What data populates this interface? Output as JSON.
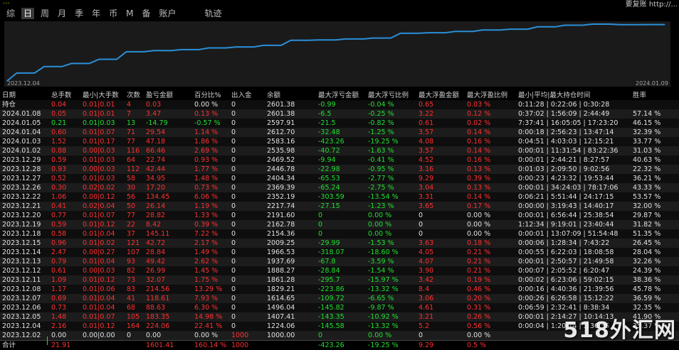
{
  "header": {
    "title": "...",
    "right": "要复账 http://..."
  },
  "tabs": [
    {
      "label": "综"
    },
    {
      "label": "日"
    },
    {
      "label": "周"
    },
    {
      "label": "月"
    },
    {
      "label": "季"
    },
    {
      "label": "年"
    },
    {
      "label": "币"
    },
    {
      "label": "M"
    },
    {
      "label": "备"
    },
    {
      "label": "账户"
    },
    {
      "label": "轨迹"
    }
  ],
  "chart_data": {
    "type": "line",
    "x": [
      "2023.12.04",
      "2023.12.05",
      "2023.12.06",
      "2023.12.07",
      "2023.12.08",
      "2023.12.11",
      "2023.12.12",
      "2023.12.13",
      "2023.12.14",
      "2023.12.15",
      "2023.12.18",
      "2023.12.19",
      "2023.12.20",
      "2023.12.21",
      "2023.12.22",
      "2023.12.26",
      "2023.12.27",
      "2023.12.28",
      "2023.12.29",
      "2024.01.02",
      "2024.01.03",
      "2024.01.04",
      "2024.01.05",
      "2024.01.08",
      "2024.01.09"
    ],
    "y": [
      1000,
      1224.06,
      1407.41,
      1496.04,
      1614.65,
      1829.21,
      1861.28,
      1888.27,
      1937.69,
      1966.53,
      2009.25,
      2154.36,
      2162.78,
      2191.6,
      2217.74,
      2352.19,
      2369.39,
      2404.34,
      2446.78,
      2469.52,
      2535.98,
      2583.16,
      2612.7,
      2597.91,
      2601.38
    ],
    "x_tick_labels": [
      "2023.12.04",
      "2024.01.09"
    ],
    "color": "#2a8fd8"
  },
  "table": {
    "headers": [
      "日期",
      "总手数",
      "最小|大手数",
      "次数",
      "盈亏金额",
      "百分比%",
      "出入金",
      "余额",
      "最大浮亏金额",
      "最大浮亏比例",
      "最大浮盈金额",
      "最大浮盈比例",
      "最小|平均|最大持仓时间",
      "胜率"
    ],
    "rows": [
      [
        "持仓",
        "0.04",
        "0.01|0.01",
        "4",
        "0.03",
        "0.00 %",
        "0",
        "2601.38",
        "-0.99",
        "-0.04 %",
        "0.65",
        "0.03 %",
        "0:11:28 | 0:22:06 | 0:30:28",
        ""
      ],
      [
        "2024.01.08",
        "0.05",
        "0.01|0.01",
        "7",
        "3.47",
        "0.13 %",
        "0",
        "2601.38",
        "-6.5",
        "-0.25 %",
        "3.22",
        "0.12 %",
        "0:37:02 | 1:56:09 | 2:44:49",
        "57.14 %"
      ],
      [
        "2024.01.05",
        "0.21",
        "0.01|0.03",
        "13",
        "-14.79",
        "-0.57 %",
        "0",
        "2597.91",
        "-21.5",
        "-0.82 %",
        "0.61",
        "0.02 %",
        "7:37:41 | 16:05:05 | 17:23:20",
        "46.15 %"
      ],
      [
        "2024.01.04",
        "0.60",
        "0.01|0.07",
        "71",
        "29.54",
        "1.14 %",
        "0",
        "2612.70",
        "-32.48",
        "-1.25 %",
        "3.57",
        "0.14 %",
        "0:00:18 | 2:56:23 | 13:47:14",
        "32.39 %"
      ],
      [
        "2024.01.03",
        "1.52",
        "0.01|0.17",
        "77",
        "47.18",
        "1.86 %",
        "0",
        "2583.16",
        "-423.26",
        "-19.25 %",
        "4.08",
        "0.16 %",
        "0:04:51 | 4:03:03 | 12:15:21",
        "33.77 %"
      ],
      [
        "2024.01.02",
        "0.88",
        "0.00|0.03",
        "116",
        "66.46",
        "2.69 %",
        "0",
        "2535.98",
        "-40.72",
        "-1.63 %",
        "3.57",
        "0.14 %",
        "0:00:01 | 11:31:54 | 83:22:36",
        "31.03 %"
      ],
      [
        "2023.12.29",
        "0.59",
        "0.01|0.03",
        "64",
        "22.74",
        "0.93 %",
        "0",
        "2469.52",
        "-9.94",
        "-0.41 %",
        "4.52",
        "0.16 %",
        "0:00:01 | 2:44:21 | 8:27:57",
        "40.63 %"
      ],
      [
        "2023.12.28",
        "0.93",
        "0.00|0.03",
        "112",
        "42.44",
        "1.77 %",
        "0",
        "2446.78",
        "-22.98",
        "-0.95 %",
        "3.16",
        "0.13 %",
        "0:01:03 | 2:09:50 | 9:02:56",
        "22.32 %"
      ],
      [
        "2023.12.27",
        "0.52",
        "0.01|0.03",
        "58",
        "34.95",
        "1.48 %",
        "0",
        "2404.34",
        "-65.53",
        "-2.77 %",
        "9.29",
        "0.39 %",
        "0:00:23 | 4:23:32 | 19:53:44",
        "36.21 %"
      ],
      [
        "2023.12.26",
        "0.30",
        "0.02|0.02",
        "30",
        "17.20",
        "0.73 %",
        "0",
        "2369.39",
        "-65.24",
        "-2.75 %",
        "3.04",
        "0.13 %",
        "0:00:01 | 34:24:03 | 78:17:06",
        "43.33 %"
      ],
      [
        "2023.12.22",
        "1.06",
        "0.00|0.12",
        "56",
        "134.45",
        "6.06 %",
        "0",
        "2352.19",
        "-303.59",
        "-13.54 %",
        "3.31",
        "0.14 %",
        "0:06:21 | 5:51:44 | 24:17:15",
        "53.57 %"
      ],
      [
        "2023.12.21",
        "0.41",
        "0.02|0.04",
        "50",
        "26.14",
        "1.19 %",
        "0",
        "2217.74",
        "-27.15",
        "-1.23 %",
        "3.65",
        "0.17 %",
        "0:00:00 | 3:19:43 | 14:40:17",
        "32.00 %"
      ],
      [
        "2023.12.20",
        "0.77",
        "0.01|0.07",
        "77",
        "28.82",
        "1.33 %",
        "0",
        "2191.60",
        "0",
        "0.00 %",
        "0",
        "0.00 %",
        "0:00:01 | 6:56:44 | 25:38:54",
        "29.87 %"
      ],
      [
        "2023.12.19",
        "0.59",
        "0.01|0.12",
        "22",
        "8.42",
        "0.39 %",
        "0",
        "2162.78",
        "0",
        "0.00 %",
        "0",
        "0.00 %",
        "1:12:34 | 9:19:01 | 23:40:44",
        "31.82 %"
      ],
      [
        "2023.12.18",
        "0.58",
        "0.01|0.04",
        "37",
        "145.11",
        "7.22 %",
        "0",
        "2154.36",
        "0",
        "0.00 %",
        "0",
        "0.00 %",
        "0:00:01 | 13:07:09 | 51:54:48",
        "51.35 %"
      ],
      [
        "2023.12.15",
        "0.96",
        "0.01|0.02",
        "121",
        "42.72",
        "2.17 %",
        "0",
        "2009.25",
        "-29.99",
        "-1.53 %",
        "3.63",
        "0.18 %",
        "0:00:06 | 1:28:34 | 7:43:22",
        "26.45 %"
      ],
      [
        "2023.12.14",
        "2.47",
        "0.00|0.27",
        "107",
        "28.84",
        "1.49 %",
        "0",
        "1966.53",
        "-318.07",
        "-18.60 %",
        "4.05",
        "0.21 %",
        "0:00:55 | 6:22:03 | 18:08:58",
        "28.04 %"
      ],
      [
        "2023.12.13",
        "0.79",
        "0.01|0.04",
        "93",
        "49.42",
        "2.62 %",
        "0",
        "1937.69",
        "-67.8",
        "-3.59 %",
        "4.07",
        "0.21 %",
        "0:00:01 | 2:50:57 | 21:49:58",
        "32.26 %"
      ],
      [
        "2023.12.12",
        "0.61",
        "0.00|0.03",
        "82",
        "26.99",
        "1.45 %",
        "0",
        "1888.27",
        "-28.84",
        "-1.54 %",
        "3.90",
        "0.21 %",
        "0:00:07 | 2:05:52 | 6:20:47",
        "24.39 %"
      ],
      [
        "2023.12.11",
        "1.09",
        "0.01|0.12",
        "73",
        "32.07",
        "1.75 %",
        "0",
        "1861.28",
        "-295.7",
        "-15.97 %",
        "3.42",
        "0.19 %",
        "0:00:02 | 6:23:06 | 59:02:15",
        "38.36 %"
      ],
      [
        "2023.12.08",
        "1.17",
        "0.01|0.06",
        "83",
        "214.56",
        "13.29 %",
        "0",
        "1829.21",
        "-223.86",
        "-13.32 %",
        "8.4",
        "0.46 %",
        "0:00:16 | 4:40:36 | 21:39:56",
        "45.78 %"
      ],
      [
        "2023.12.07",
        "0.69",
        "0.01|0.04",
        "41",
        "118.61",
        "7.93 %",
        "0",
        "1614.65",
        "-109.72",
        "-6.65 %",
        "3.06",
        "0.20 %",
        "0:00:26 | 6:26:58 | 15:12:22",
        "36.59 %"
      ],
      [
        "2023.12.06",
        "0.73",
        "0.01|0.04",
        "68",
        "88.63",
        "6.30 %",
        "0",
        "1496.04",
        "-145.82",
        "-9.87 %",
        "4.61",
        "0.31 %",
        "0:06:59 | 2:32:41 | 8:38:34",
        "32.35 %"
      ],
      [
        "2023.12.05",
        "1.48",
        "0.01|0.07",
        "105",
        "183.35",
        "14.98 %",
        "0",
        "1407.41",
        "-143.35",
        "-10.92 %",
        "3.21",
        "0.26 %",
        "0:00:01 | 2:14:27 | 10:14:13",
        "41.90 %"
      ],
      [
        "2023.12.04",
        "2.16",
        "0.01|0.12",
        "164",
        "224.06",
        "22.41 %",
        "0",
        "1224.06",
        "-145.58",
        "-13.32 %",
        "5.2",
        "0.56 %",
        "0:00:04 | 1:20:14 | 5:36:55",
        "35.37 %"
      ],
      [
        "2023.12.02",
        "0.00",
        "0.00|0.00",
        "0",
        "0.00",
        "0.00 %",
        "1000",
        "1000.00",
        "0",
        "0.00 %",
        "0",
        "0.00 %",
        "",
        ""
      ]
    ],
    "summary": [
      "合计",
      "21.91",
      "",
      "",
      "1601.41",
      "160.14 %",
      "1000",
      "",
      "-423.26",
      "-19.25 %",
      "9.29",
      "0.5 %",
      "",
      ""
    ]
  },
  "watermark": "518外汇网"
}
